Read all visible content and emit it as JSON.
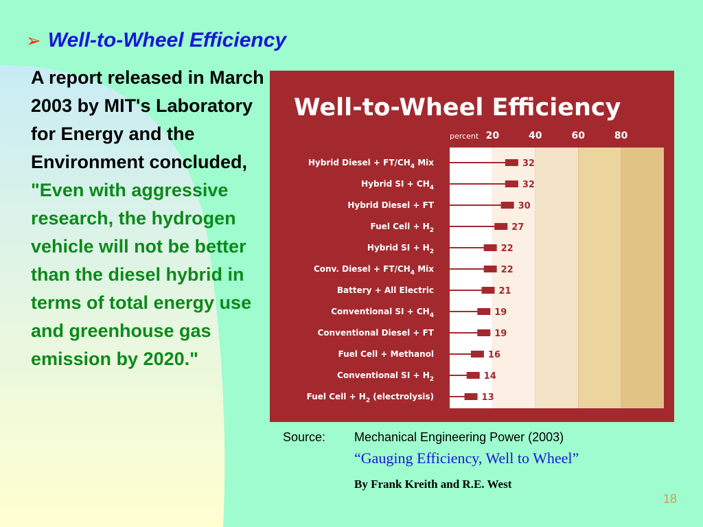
{
  "slide": {
    "title": "Well-to-Wheel Efficiency",
    "bullet_glyph": "➢",
    "body_plain": "A report released in March 2003 by MIT's Laboratory for Energy and the Environment concluded, ",
    "body_quote": "\"Even with aggressive research, the hydrogen vehicle will not be better than the diesel hybrid in terms of total energy use and greenhouse gas emission by 2020.\"",
    "page_number": "18"
  },
  "source": {
    "label": "Source:",
    "journal": "Mechanical Engineering Power (2003)",
    "article": "“Gauging Efficiency, Well to Wheel”",
    "authors": "By Frank Kreith and R.E. West"
  },
  "colors": {
    "background": "#9ffcce",
    "title": "#1518d6",
    "quote": "#0b8a1a",
    "panel": "#a3292f",
    "bar": "#a3292f"
  },
  "chart_data": {
    "type": "bar",
    "orientation": "horizontal",
    "title": "Well-to-Wheel Efficiency",
    "xlabel": "percent",
    "xticks": [
      20,
      40,
      60,
      80
    ],
    "xlim": [
      0,
      100
    ],
    "categories": [
      {
        "label": "Hybrid Diesel + FT/CH",
        "sub": "4",
        "tail": " Mix"
      },
      {
        "label": "Hybrid SI + CH",
        "sub": "4",
        "tail": ""
      },
      {
        "label": "Hybrid Diesel + FT",
        "sub": "",
        "tail": ""
      },
      {
        "label": "Fuel Cell + H",
        "sub": "2",
        "tail": ""
      },
      {
        "label": "Hybrid SI + H",
        "sub": "2",
        "tail": ""
      },
      {
        "label": "Conv. Diesel + FT/CH",
        "sub": "4",
        "tail": " Mix"
      },
      {
        "label": "Battery + All Electric",
        "sub": "",
        "tail": ""
      },
      {
        "label": "Conventional SI + CH",
        "sub": "4",
        "tail": ""
      },
      {
        "label": "Conventional Diesel + FT",
        "sub": "",
        "tail": ""
      },
      {
        "label": "Fuel Cell + Methanol",
        "sub": "",
        "tail": ""
      },
      {
        "label": "Conventional SI + H",
        "sub": "2",
        "tail": ""
      },
      {
        "label": "Fuel Cell + H",
        "sub": "2",
        "tail": " (electrolysis)"
      }
    ],
    "values": [
      32,
      32,
      30,
      27,
      22,
      22,
      21,
      19,
      19,
      16,
      14,
      13
    ]
  }
}
